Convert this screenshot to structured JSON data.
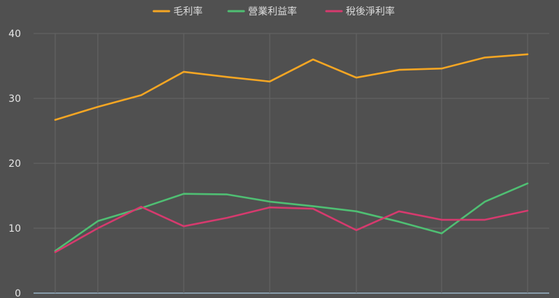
{
  "chart_data": {
    "type": "line",
    "title": "",
    "xlabel": "",
    "ylabel": "",
    "ylim": [
      0,
      40
    ],
    "yticks": [
      0,
      10,
      20,
      30,
      40
    ],
    "grid": true,
    "legend_position": "top-center",
    "x": [
      1,
      2,
      3,
      4,
      5,
      6,
      7,
      8,
      9,
      10,
      11,
      12
    ],
    "series": [
      {
        "name": "毛利率",
        "color": "#f5a623",
        "values": [
          26.7,
          28.7,
          30.5,
          34.1,
          33.3,
          32.6,
          36.0,
          33.2,
          34.4,
          34.6,
          36.3,
          36.8
        ]
      },
      {
        "name": "營業利益率",
        "color": "#4fbf73",
        "values": [
          6.5,
          11.1,
          13.1,
          15.3,
          15.2,
          14.1,
          13.4,
          12.6,
          11.0,
          9.2,
          14.1,
          16.9
        ]
      },
      {
        "name": "稅後淨利率",
        "color": "#d63a6e",
        "values": [
          6.3,
          10.0,
          13.3,
          10.3,
          11.6,
          13.2,
          13.0,
          9.7,
          12.6,
          11.3,
          11.3,
          12.7
        ]
      }
    ]
  },
  "colors": {
    "background": "#505050",
    "grid": "#666666",
    "baseline": "#a8c8e0"
  }
}
